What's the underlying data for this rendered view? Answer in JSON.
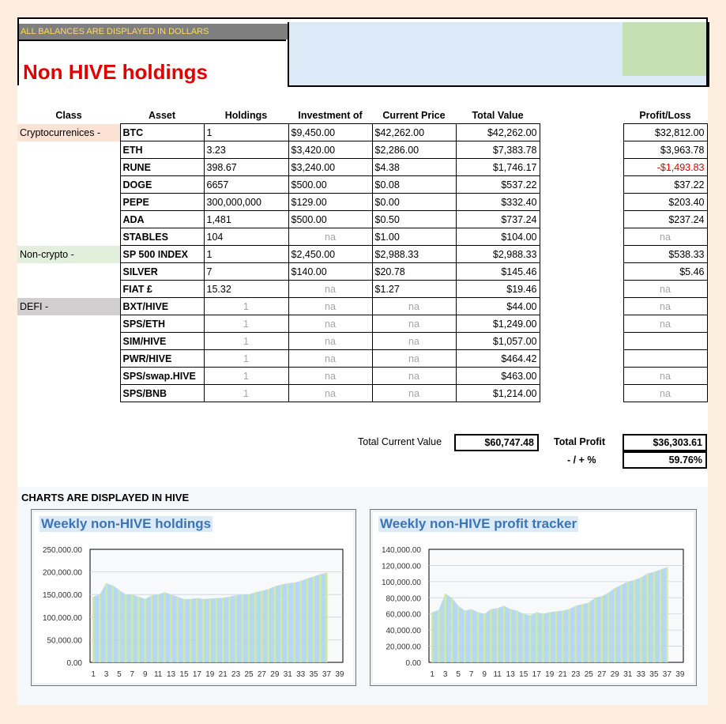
{
  "header": {
    "banner": "ALL BALANCES ARE DISPLAYED IN DOLLARS",
    "title": "Non HIVE holdings"
  },
  "table": {
    "columns": {
      "class": "Class",
      "asset": "Asset",
      "holdings": "Holdings",
      "investment": "Investment of",
      "price": "Current Price",
      "value": "Total Value",
      "pl": "Profit/Loss"
    },
    "rows": [
      {
        "cls": "Cryptocurrenices -",
        "asset": "BTC",
        "holdings": "1",
        "investment": "$9,450.00",
        "price": "$42,262.00",
        "value": "$42,262.00",
        "pl": "$32,812.00"
      },
      {
        "cls": "",
        "asset": "ETH",
        "holdings": "3.23",
        "investment": "$3,420.00",
        "price": "$2,286.00",
        "value": "$7,383.78",
        "pl": "$3,963.78"
      },
      {
        "cls": "",
        "asset": "RUNE",
        "holdings": "398.67",
        "investment": "$3,240.00",
        "price": "$4.38",
        "value": "$1,746.17",
        "pl": "-$1,493.83"
      },
      {
        "cls": "",
        "asset": "DOGE",
        "holdings": "6657",
        "investment": "$500.00",
        "price": "$0.08",
        "value": "$537.22",
        "pl": "$37.22"
      },
      {
        "cls": "",
        "asset": "PEPE",
        "holdings": "300,000,000",
        "investment": "$129.00",
        "price": "$0.00",
        "value": "$332.40",
        "pl": "$203.40"
      },
      {
        "cls": "",
        "asset": "ADA",
        "holdings": "1,481",
        "investment": "$500.00",
        "price": "$0.50",
        "value": "$737.24",
        "pl": "$237.24"
      },
      {
        "cls": "",
        "asset": "STABLES",
        "holdings": "104",
        "investment": "na",
        "price": "$1.00",
        "value": "$104.00",
        "pl": "na"
      },
      {
        "cls": "Non-crypto -",
        "asset": "SP 500 INDEX",
        "holdings": "1",
        "investment": "$2,450.00",
        "price": "$2,988.33",
        "value": "$2,988.33",
        "pl": "$538.33"
      },
      {
        "cls": "",
        "asset": "SILVER",
        "holdings": "7",
        "investment": "$140.00",
        "price": "$20.78",
        "value": "$145.46",
        "pl": "$5.46"
      },
      {
        "cls": "",
        "asset": "FIAT £",
        "holdings": "15.32",
        "investment": "na",
        "price": "$1.27",
        "value": "$19.46",
        "pl": "na"
      },
      {
        "cls": "DEFI -",
        "asset": "BXT/HIVE",
        "holdings": "1",
        "investment": "na",
        "price": "na",
        "value": "$44.00",
        "pl": "na"
      },
      {
        "cls": "",
        "asset": "SPS/ETH",
        "holdings": "1",
        "investment": "na",
        "price": "na",
        "value": "$1,249.00",
        "pl": "na"
      },
      {
        "cls": "",
        "asset": "SIM/HIVE",
        "holdings": "1",
        "investment": "na",
        "price": "na",
        "value": "$1,057.00",
        "pl": ""
      },
      {
        "cls": "",
        "asset": "PWR/HIVE",
        "holdings": "1",
        "investment": "na",
        "price": "na",
        "value": "$464.42",
        "pl": ""
      },
      {
        "cls": "",
        "asset": "SPS/swap.HIVE",
        "holdings": "1",
        "investment": "na",
        "price": "na",
        "value": "$463.00",
        "pl": "na"
      },
      {
        "cls": "",
        "asset": "SPS/BNB",
        "holdings": "1",
        "investment": "na",
        "price": "na",
        "value": "$1,214.00",
        "pl": "na"
      }
    ]
  },
  "totals": {
    "current_value_label": "Total Current Value",
    "current_value": "$60,747.48",
    "profit_label": "Total Profit",
    "profit": "$36,303.61",
    "pct_label": "- / + %",
    "pct": "59.76%"
  },
  "charts_label": "CHARTS ARE DISPLAYED IN HIVE",
  "chart_data": [
    {
      "type": "bar",
      "title": "Weekly non-HIVE holdings",
      "ylim": [
        0,
        250000
      ],
      "yticks": [
        "0.00",
        "50,000.00",
        "100,000.00",
        "150,000.00",
        "200,000.00",
        "250,000.00"
      ],
      "xticks": [
        "1",
        "3",
        "5",
        "7",
        "9",
        "11",
        "13",
        "15",
        "17",
        "19",
        "21",
        "23",
        "25",
        "27",
        "29",
        "31",
        "33",
        "35",
        "37",
        "39"
      ],
      "values": [
        145000,
        150000,
        175000,
        170000,
        160000,
        150000,
        150000,
        145000,
        140000,
        148000,
        150000,
        155000,
        150000,
        145000,
        140000,
        140000,
        142000,
        140000,
        141000,
        142000,
        143000,
        145000,
        148000,
        150000,
        150000,
        155000,
        158000,
        162000,
        168000,
        172000,
        175000,
        176000,
        180000,
        185000,
        190000,
        195000,
        198000
      ],
      "grid": true
    },
    {
      "type": "bar",
      "title": "Weekly non-HIVE profit tracker",
      "ylim": [
        0,
        140000
      ],
      "yticks": [
        "0.00",
        "20,000.00",
        "40,000.00",
        "60,000.00",
        "80,000.00",
        "100,000.00",
        "120,000.00",
        "140,000.00"
      ],
      "xticks": [
        "1",
        "3",
        "5",
        "7",
        "9",
        "11",
        "13",
        "15",
        "17",
        "19",
        "21",
        "23",
        "25",
        "27",
        "29",
        "31",
        "33",
        "35",
        "37",
        "39"
      ],
      "values": [
        62000,
        65000,
        85000,
        80000,
        70000,
        64000,
        66000,
        62000,
        60000,
        66000,
        67000,
        70000,
        66000,
        64000,
        60000,
        58000,
        62000,
        60000,
        62000,
        63000,
        64000,
        66000,
        70000,
        72000,
        74000,
        80000,
        82000,
        86000,
        92000,
        96000,
        100000,
        102000,
        105000,
        110000,
        112000,
        115000,
        118000
      ],
      "grid": true
    }
  ]
}
